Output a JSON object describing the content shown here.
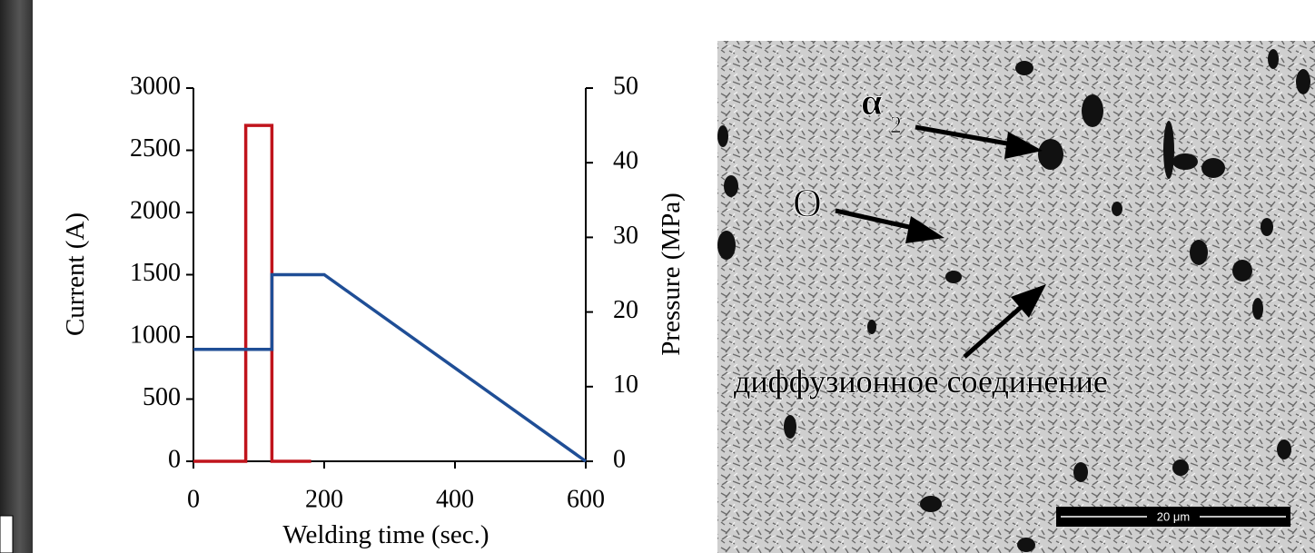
{
  "chart_data": {
    "type": "line",
    "xlabel": "Welding time (sec.)",
    "ylabel": "Current (A)",
    "y2label": "Pressure (MPa)",
    "xlim": [
      0,
      600
    ],
    "xticks": [
      0,
      200,
      400,
      600
    ],
    "ylim": [
      0,
      3000
    ],
    "yticks": [
      0,
      500,
      1000,
      1500,
      2000,
      2500,
      3000
    ],
    "y2lim": [
      0,
      50
    ],
    "y2ticks": [
      0,
      10,
      20,
      30,
      40,
      50
    ],
    "series": [
      {
        "color": "#c0141c",
        "x": [
          0,
          80,
          80,
          120,
          120,
          180
        ],
        "values": [
          0,
          0,
          2700,
          2700,
          0,
          0
        ]
      },
      {
        "color": "#1f4e96",
        "axis": "y2",
        "x": [
          0,
          120,
          120,
          200,
          600
        ],
        "values": [
          15,
          15,
          25,
          25,
          0
        ]
      }
    ]
  },
  "micrograph": {
    "labels": [
      "α",
      "2",
      "O",
      "диффузионное соединение"
    ],
    "scale_bar": "20 μm"
  }
}
